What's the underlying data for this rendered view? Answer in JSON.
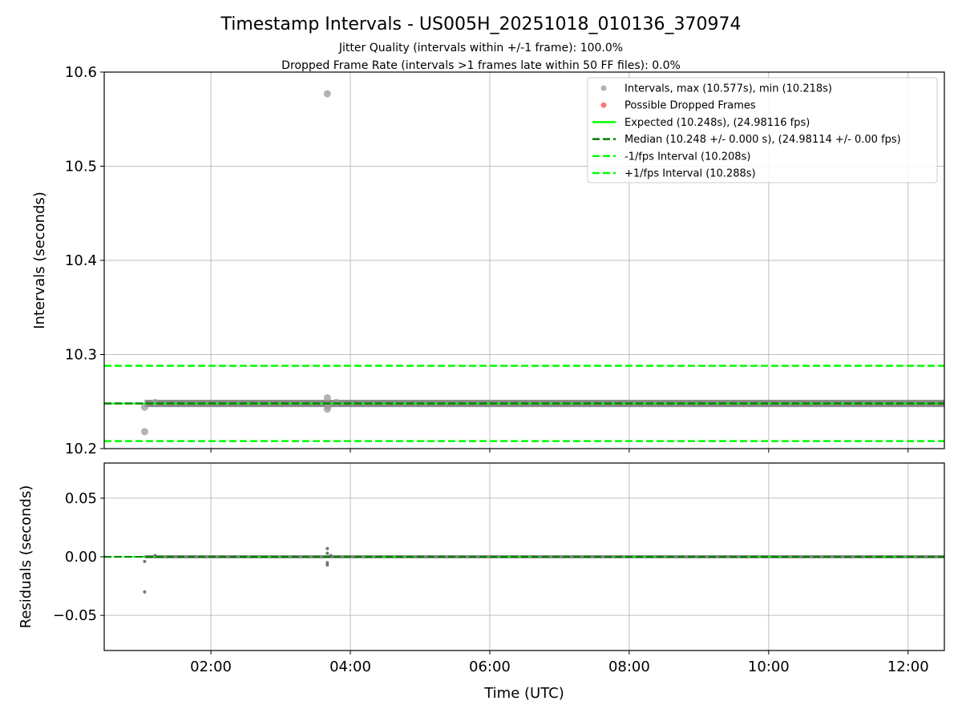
{
  "chart_data": [
    {
      "type": "scatter",
      "title": "Timestamp Intervals - US005H_20251018_010136_370974",
      "subtitle_lines": [
        "Jitter Quality (intervals within +/-1 frame): 100.0%",
        "Dropped Frame Rate (intervals >1 frames late within 50 FF files): 0.0%"
      ],
      "ylabel": "Intervals (seconds)",
      "ylim": [
        10.2,
        10.6
      ],
      "yticks": [
        "10.2",
        "10.3",
        "10.4",
        "10.5",
        "10.6"
      ],
      "ytick_values": [
        10.2,
        10.3,
        10.4,
        10.5,
        10.6
      ],
      "xlim_hours": [
        0.47,
        12.52
      ],
      "grid": true,
      "legend_position": "top-right",
      "legend": [
        {
          "label": "Intervals, max (10.577s), min (10.218s)",
          "style": "marker",
          "color": "#aaaaaa"
        },
        {
          "label": "Possible Dropped Frames",
          "style": "marker",
          "color": "#ff6666"
        },
        {
          "label": "Expected (10.248s), (24.98116 fps)",
          "style": "solid",
          "color": "#00ff00"
        },
        {
          "label": "Median (10.248 +/- 0.000 s), (24.98114 +/- 0.00 fps)",
          "style": "dashed",
          "color": "#008000"
        },
        {
          "label": "-1/fps Interval (10.208s)",
          "style": "dashed",
          "color": "#00ff00"
        },
        {
          "label": "+1/fps Interval (10.288s)",
          "style": "dashed",
          "color": "#00ff00"
        }
      ],
      "hlines": {
        "expected": 10.248,
        "median": 10.248,
        "minus": 10.208,
        "plus": 10.288
      },
      "dense_band": {
        "start_hours": 1.05,
        "end_hours": 12.52,
        "value": 10.248
      },
      "points": [
        {
          "x": 1.05,
          "y": 10.218
        },
        {
          "x": 1.05,
          "y": 10.244
        },
        {
          "x": 1.2,
          "y": 10.249
        },
        {
          "x": 3.67,
          "y": 10.577
        },
        {
          "x": 3.67,
          "y": 10.254
        },
        {
          "x": 3.67,
          "y": 10.242
        },
        {
          "x": 3.68,
          "y": 10.245
        },
        {
          "x": 3.8,
          "y": 10.249
        }
      ]
    },
    {
      "type": "scatter",
      "ylabel": "Residuals (seconds)",
      "xlabel": "Time (UTC)",
      "ylim": [
        -0.08,
        0.08
      ],
      "yticks": [
        "−0.05",
        "0.00",
        "0.05"
      ],
      "ytick_values": [
        -0.05,
        0.0,
        0.05
      ],
      "xticks": [
        "02:00",
        "04:00",
        "06:00",
        "08:00",
        "10:00",
        "12:00"
      ],
      "xtick_values": [
        2,
        4,
        6,
        8,
        10,
        12
      ],
      "dense_band": {
        "start_hours": 1.05,
        "end_hours": 12.52,
        "value": 0.0
      },
      "points": [
        {
          "x": 1.05,
          "y": -0.004
        },
        {
          "x": 1.05,
          "y": -0.03
        },
        {
          "x": 1.2,
          "y": 0.001
        },
        {
          "x": 3.67,
          "y": 0.007
        },
        {
          "x": 3.67,
          "y": 0.003
        },
        {
          "x": 3.67,
          "y": -0.005
        },
        {
          "x": 3.67,
          "y": -0.007
        },
        {
          "x": 3.72,
          "y": 0.001
        }
      ]
    }
  ]
}
